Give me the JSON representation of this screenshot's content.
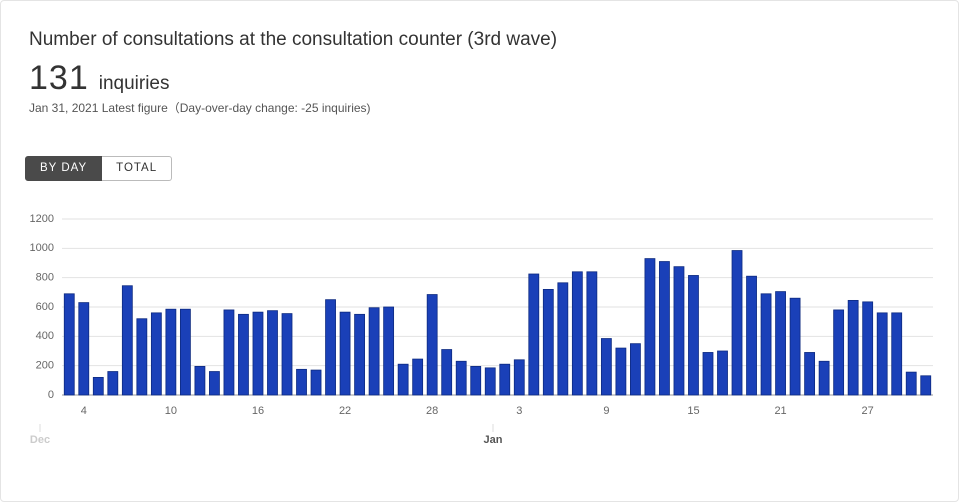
{
  "header": {
    "title": "Number of consultations at the consultation counter (3rd wave)",
    "figure": "131",
    "unit": "inquiries",
    "subtitle": "Jan 31, 2021 Latest figure（Day-over-day change: -25 inquiries)"
  },
  "buttons": [
    "BY DAY",
    "TOTAL"
  ],
  "chart_data": {
    "type": "bar",
    "categories": [
      null,
      "4",
      null,
      null,
      null,
      null,
      null,
      "10",
      null,
      null,
      null,
      null,
      null,
      "16",
      null,
      null,
      null,
      null,
      null,
      "22",
      null,
      null,
      null,
      null,
      null,
      "28",
      null,
      null,
      null,
      null,
      null,
      "3",
      null,
      null,
      null,
      null,
      null,
      "9",
      null,
      null,
      null,
      null,
      null,
      "15",
      null,
      null,
      null,
      null,
      null,
      "21",
      null,
      null,
      null,
      null,
      null,
      "27",
      null,
      null,
      null,
      null
    ],
    "values": [
      690,
      630,
      120,
      160,
      745,
      520,
      560,
      585,
      585,
      195,
      160,
      580,
      550,
      565,
      575,
      555,
      175,
      170,
      650,
      565,
      550,
      595,
      600,
      210,
      245,
      685,
      310,
      230,
      195,
      185,
      210,
      240,
      825,
      720,
      765,
      840,
      840,
      385,
      320,
      350,
      930,
      910,
      875,
      815,
      290,
      300,
      985,
      810,
      690,
      705,
      660,
      290,
      230,
      580,
      645,
      635,
      560,
      560,
      156,
      131
    ],
    "months": [
      "Dec",
      "Jan"
    ],
    "color": "#1a40b8",
    "ylim": [
      0,
      1200
    ],
    "yticks": [
      0,
      200,
      400,
      600,
      800,
      1000,
      1200
    ],
    "grid": true
  }
}
